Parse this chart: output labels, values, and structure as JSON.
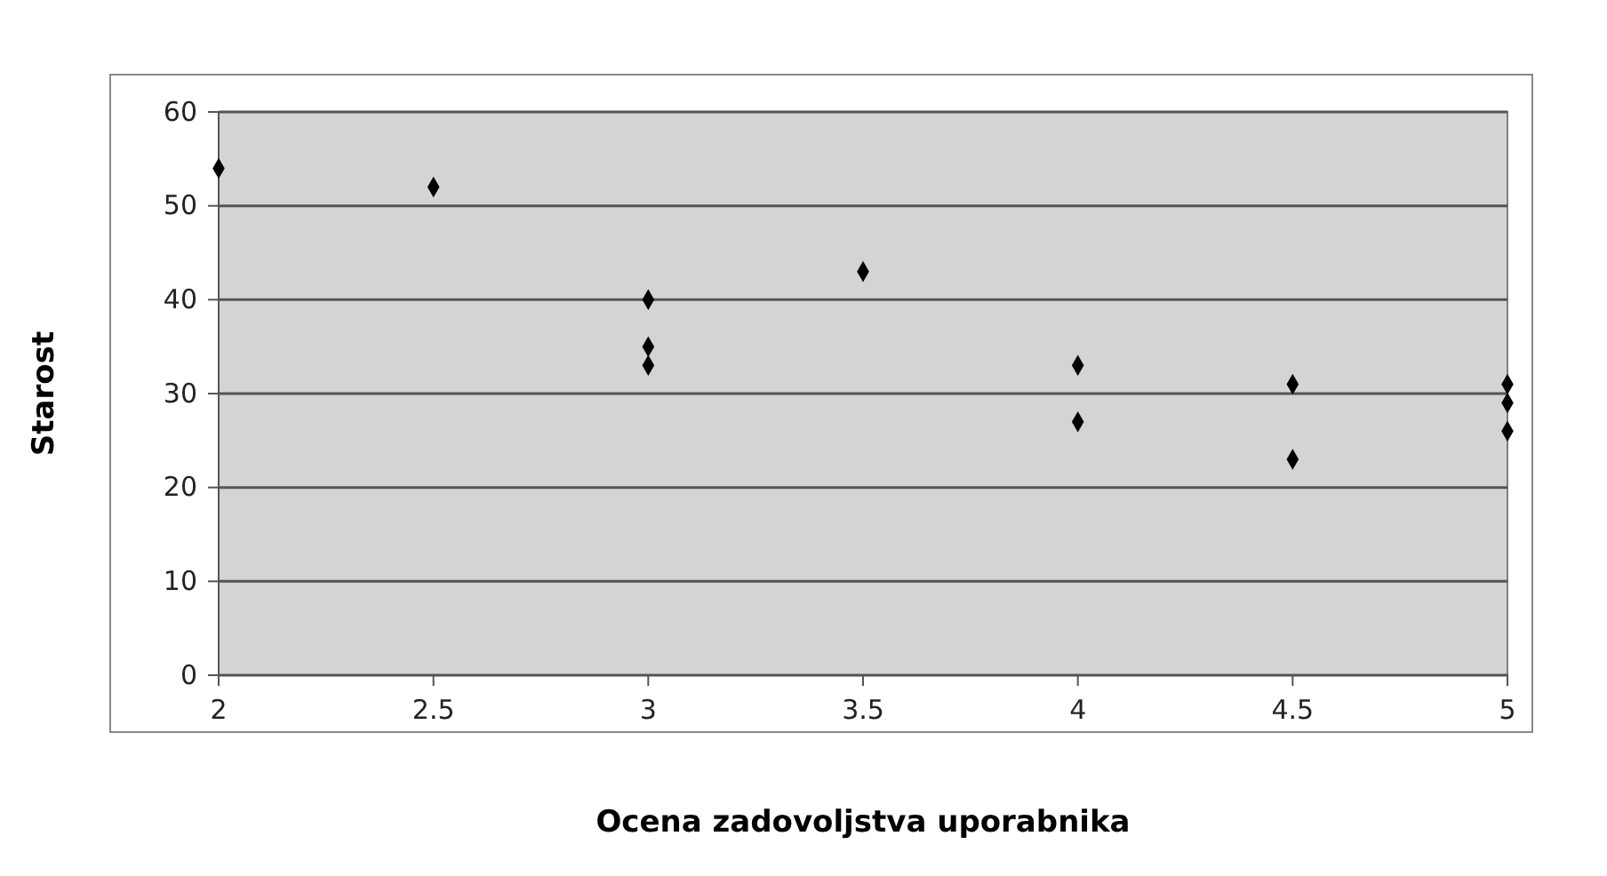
{
  "chart_data": {
    "type": "scatter",
    "xlabel": "Ocena zadovoljstva uporabnika",
    "ylabel": "Starost",
    "x": [
      2,
      2.5,
      3,
      3,
      3,
      3.5,
      4,
      4,
      4.5,
      4.5,
      5,
      5,
      5
    ],
    "values": [
      54,
      52,
      40,
      35,
      33,
      43,
      33,
      27,
      31,
      23,
      31,
      29,
      26
    ],
    "color": "#000000",
    "marker": "diamond",
    "xlim": [
      2,
      5
    ],
    "xticks": [
      2,
      2.5,
      3,
      3.5,
      4,
      4.5,
      5
    ],
    "ylim": [
      0,
      60
    ],
    "yticks": [
      0,
      10,
      20,
      30,
      40,
      50,
      60
    ],
    "grid": "y"
  }
}
